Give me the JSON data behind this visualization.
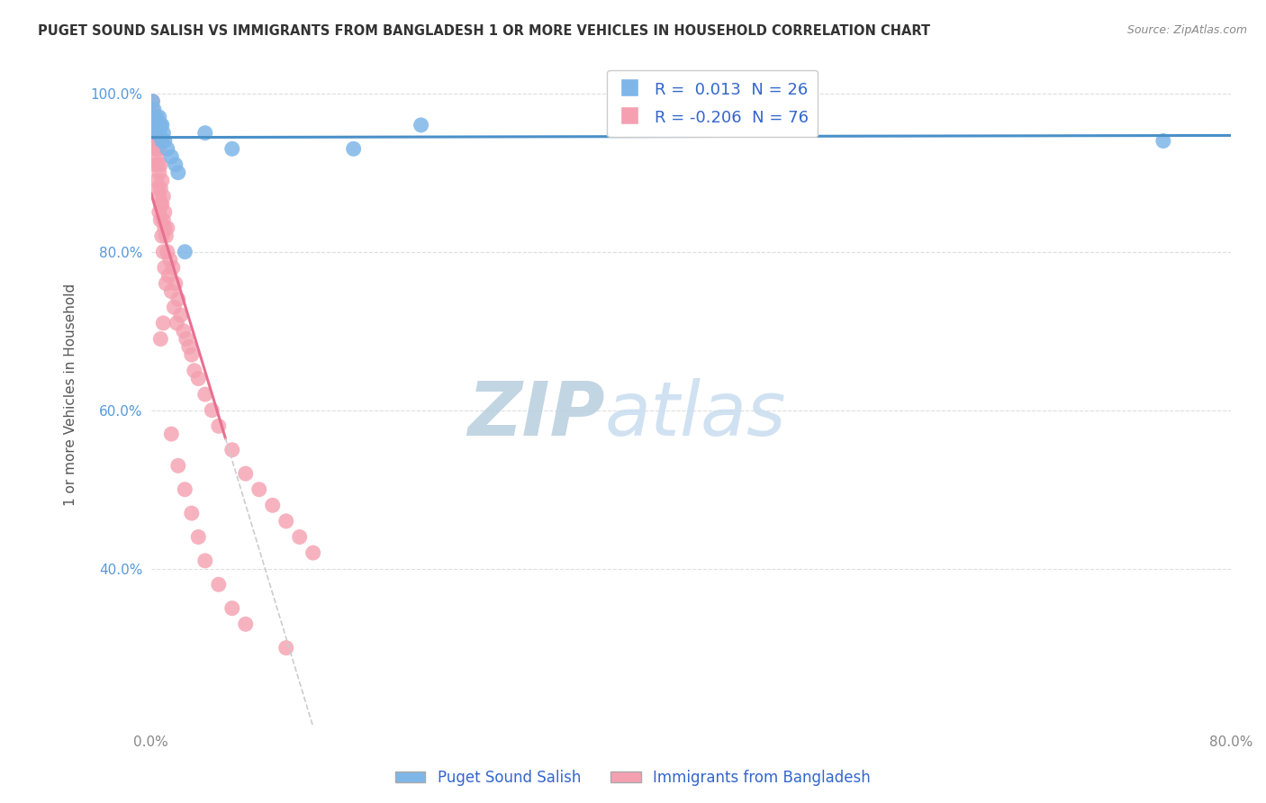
{
  "title": "PUGET SOUND SALISH VS IMMIGRANTS FROM BANGLADESH 1 OR MORE VEHICLES IN HOUSEHOLD CORRELATION CHART",
  "source": "Source: ZipAtlas.com",
  "ylabel": "1 or more Vehicles in Household",
  "xlim": [
    0.0,
    0.8
  ],
  "ylim": [
    0.2,
    1.04
  ],
  "x_ticks": [
    0.0,
    0.1,
    0.2,
    0.3,
    0.4,
    0.5,
    0.6,
    0.7,
    0.8
  ],
  "x_tick_labels": [
    "0.0%",
    "",
    "",
    "",
    "",
    "",
    "",
    "",
    "80.0%"
  ],
  "y_ticks": [
    0.4,
    0.6,
    0.8,
    1.0
  ],
  "y_tick_labels": [
    "40.0%",
    "60.0%",
    "80.0%",
    "100.0%"
  ],
  "r_salish": 0.013,
  "n_salish": 26,
  "r_bangladesh": -0.206,
  "n_bangladesh": 76,
  "salish_color": "#7EB6E8",
  "bangladesh_color": "#F4A0B0",
  "salish_line_color": "#4A90C8",
  "bangladesh_line_color": "#E87090",
  "trend_dashed_color": "#CCCCCC",
  "background_color": "#FFFFFF",
  "grid_color": "#DDDDDD",
  "watermark_text": "ZIPatlas",
  "watermark_color": "#C8DCF0",
  "legend_label_salish": "Puget Sound Salish",
  "legend_label_bangladesh": "Immigrants from Bangladesh",
  "salish_x": [
    0.001,
    0.002,
    0.002,
    0.003,
    0.003,
    0.004,
    0.004,
    0.005,
    0.006,
    0.006,
    0.007,
    0.008,
    0.008,
    0.009,
    0.01,
    0.012,
    0.015,
    0.018,
    0.02,
    0.025,
    0.04,
    0.06,
    0.4,
    0.75,
    0.2,
    0.15
  ],
  "salish_y": [
    0.99,
    0.97,
    0.98,
    0.96,
    0.97,
    0.95,
    0.97,
    0.96,
    0.95,
    0.97,
    0.96,
    0.94,
    0.96,
    0.95,
    0.94,
    0.93,
    0.92,
    0.91,
    0.9,
    0.8,
    0.95,
    0.93,
    0.97,
    0.94,
    0.96,
    0.93
  ],
  "bangladesh_x": [
    0.001,
    0.001,
    0.001,
    0.002,
    0.002,
    0.002,
    0.002,
    0.003,
    0.003,
    0.003,
    0.003,
    0.004,
    0.004,
    0.004,
    0.004,
    0.005,
    0.005,
    0.005,
    0.006,
    0.006,
    0.006,
    0.006,
    0.007,
    0.007,
    0.007,
    0.007,
    0.008,
    0.008,
    0.008,
    0.009,
    0.009,
    0.009,
    0.01,
    0.01,
    0.01,
    0.011,
    0.011,
    0.012,
    0.012,
    0.013,
    0.014,
    0.015,
    0.016,
    0.017,
    0.018,
    0.019,
    0.02,
    0.022,
    0.024,
    0.026,
    0.028,
    0.03,
    0.032,
    0.035,
    0.04,
    0.045,
    0.05,
    0.06,
    0.07,
    0.08,
    0.09,
    0.1,
    0.11,
    0.12,
    0.015,
    0.02,
    0.025,
    0.03,
    0.035,
    0.04,
    0.05,
    0.06,
    0.07,
    0.1,
    0.009,
    0.007
  ],
  "bangladesh_y": [
    0.99,
    0.97,
    0.98,
    0.96,
    0.94,
    0.97,
    0.95,
    0.93,
    0.96,
    0.94,
    0.91,
    0.92,
    0.95,
    0.89,
    0.93,
    0.91,
    0.88,
    0.94,
    0.9,
    0.87,
    0.93,
    0.85,
    0.88,
    0.86,
    0.91,
    0.84,
    0.89,
    0.82,
    0.86,
    0.84,
    0.8,
    0.87,
    0.83,
    0.78,
    0.85,
    0.82,
    0.76,
    0.8,
    0.83,
    0.77,
    0.79,
    0.75,
    0.78,
    0.73,
    0.76,
    0.71,
    0.74,
    0.72,
    0.7,
    0.69,
    0.68,
    0.67,
    0.65,
    0.64,
    0.62,
    0.6,
    0.58,
    0.55,
    0.52,
    0.5,
    0.48,
    0.46,
    0.44,
    0.42,
    0.57,
    0.53,
    0.5,
    0.47,
    0.44,
    0.41,
    0.38,
    0.35,
    0.33,
    0.3,
    0.71,
    0.69
  ],
  "solid_line_end_x": 0.055,
  "trend_intercept": 0.92,
  "trend_slope": -3.0
}
